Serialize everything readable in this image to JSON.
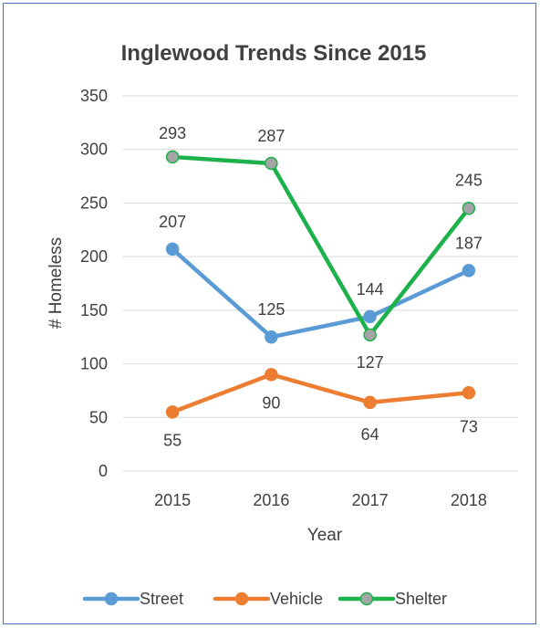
{
  "chart_data": {
    "type": "line",
    "title": "Inglewood Trends Since 2015",
    "xlabel": "Year",
    "ylabel": "# Homeless",
    "categories": [
      "2015",
      "2016",
      "2017",
      "2018"
    ],
    "ylim": [
      0,
      350
    ],
    "yticks": [
      "0",
      "50",
      "100",
      "150",
      "200",
      "250",
      "300",
      "350"
    ],
    "grid": true,
    "legend_position": "bottom",
    "series": [
      {
        "name": "Street",
        "values": [
          207,
          125,
          144,
          187
        ],
        "color": "#5B9BD5",
        "marker_fill": "#5B9BD5"
      },
      {
        "name": "Vehicle",
        "values": [
          55,
          90,
          64,
          73
        ],
        "color": "#ED7D31",
        "marker_fill": "#ED7D31"
      },
      {
        "name": "Shelter",
        "values": [
          293,
          287,
          127,
          245
        ],
        "color": "#1DB14B",
        "marker_fill": "#A5A5A5"
      }
    ]
  }
}
